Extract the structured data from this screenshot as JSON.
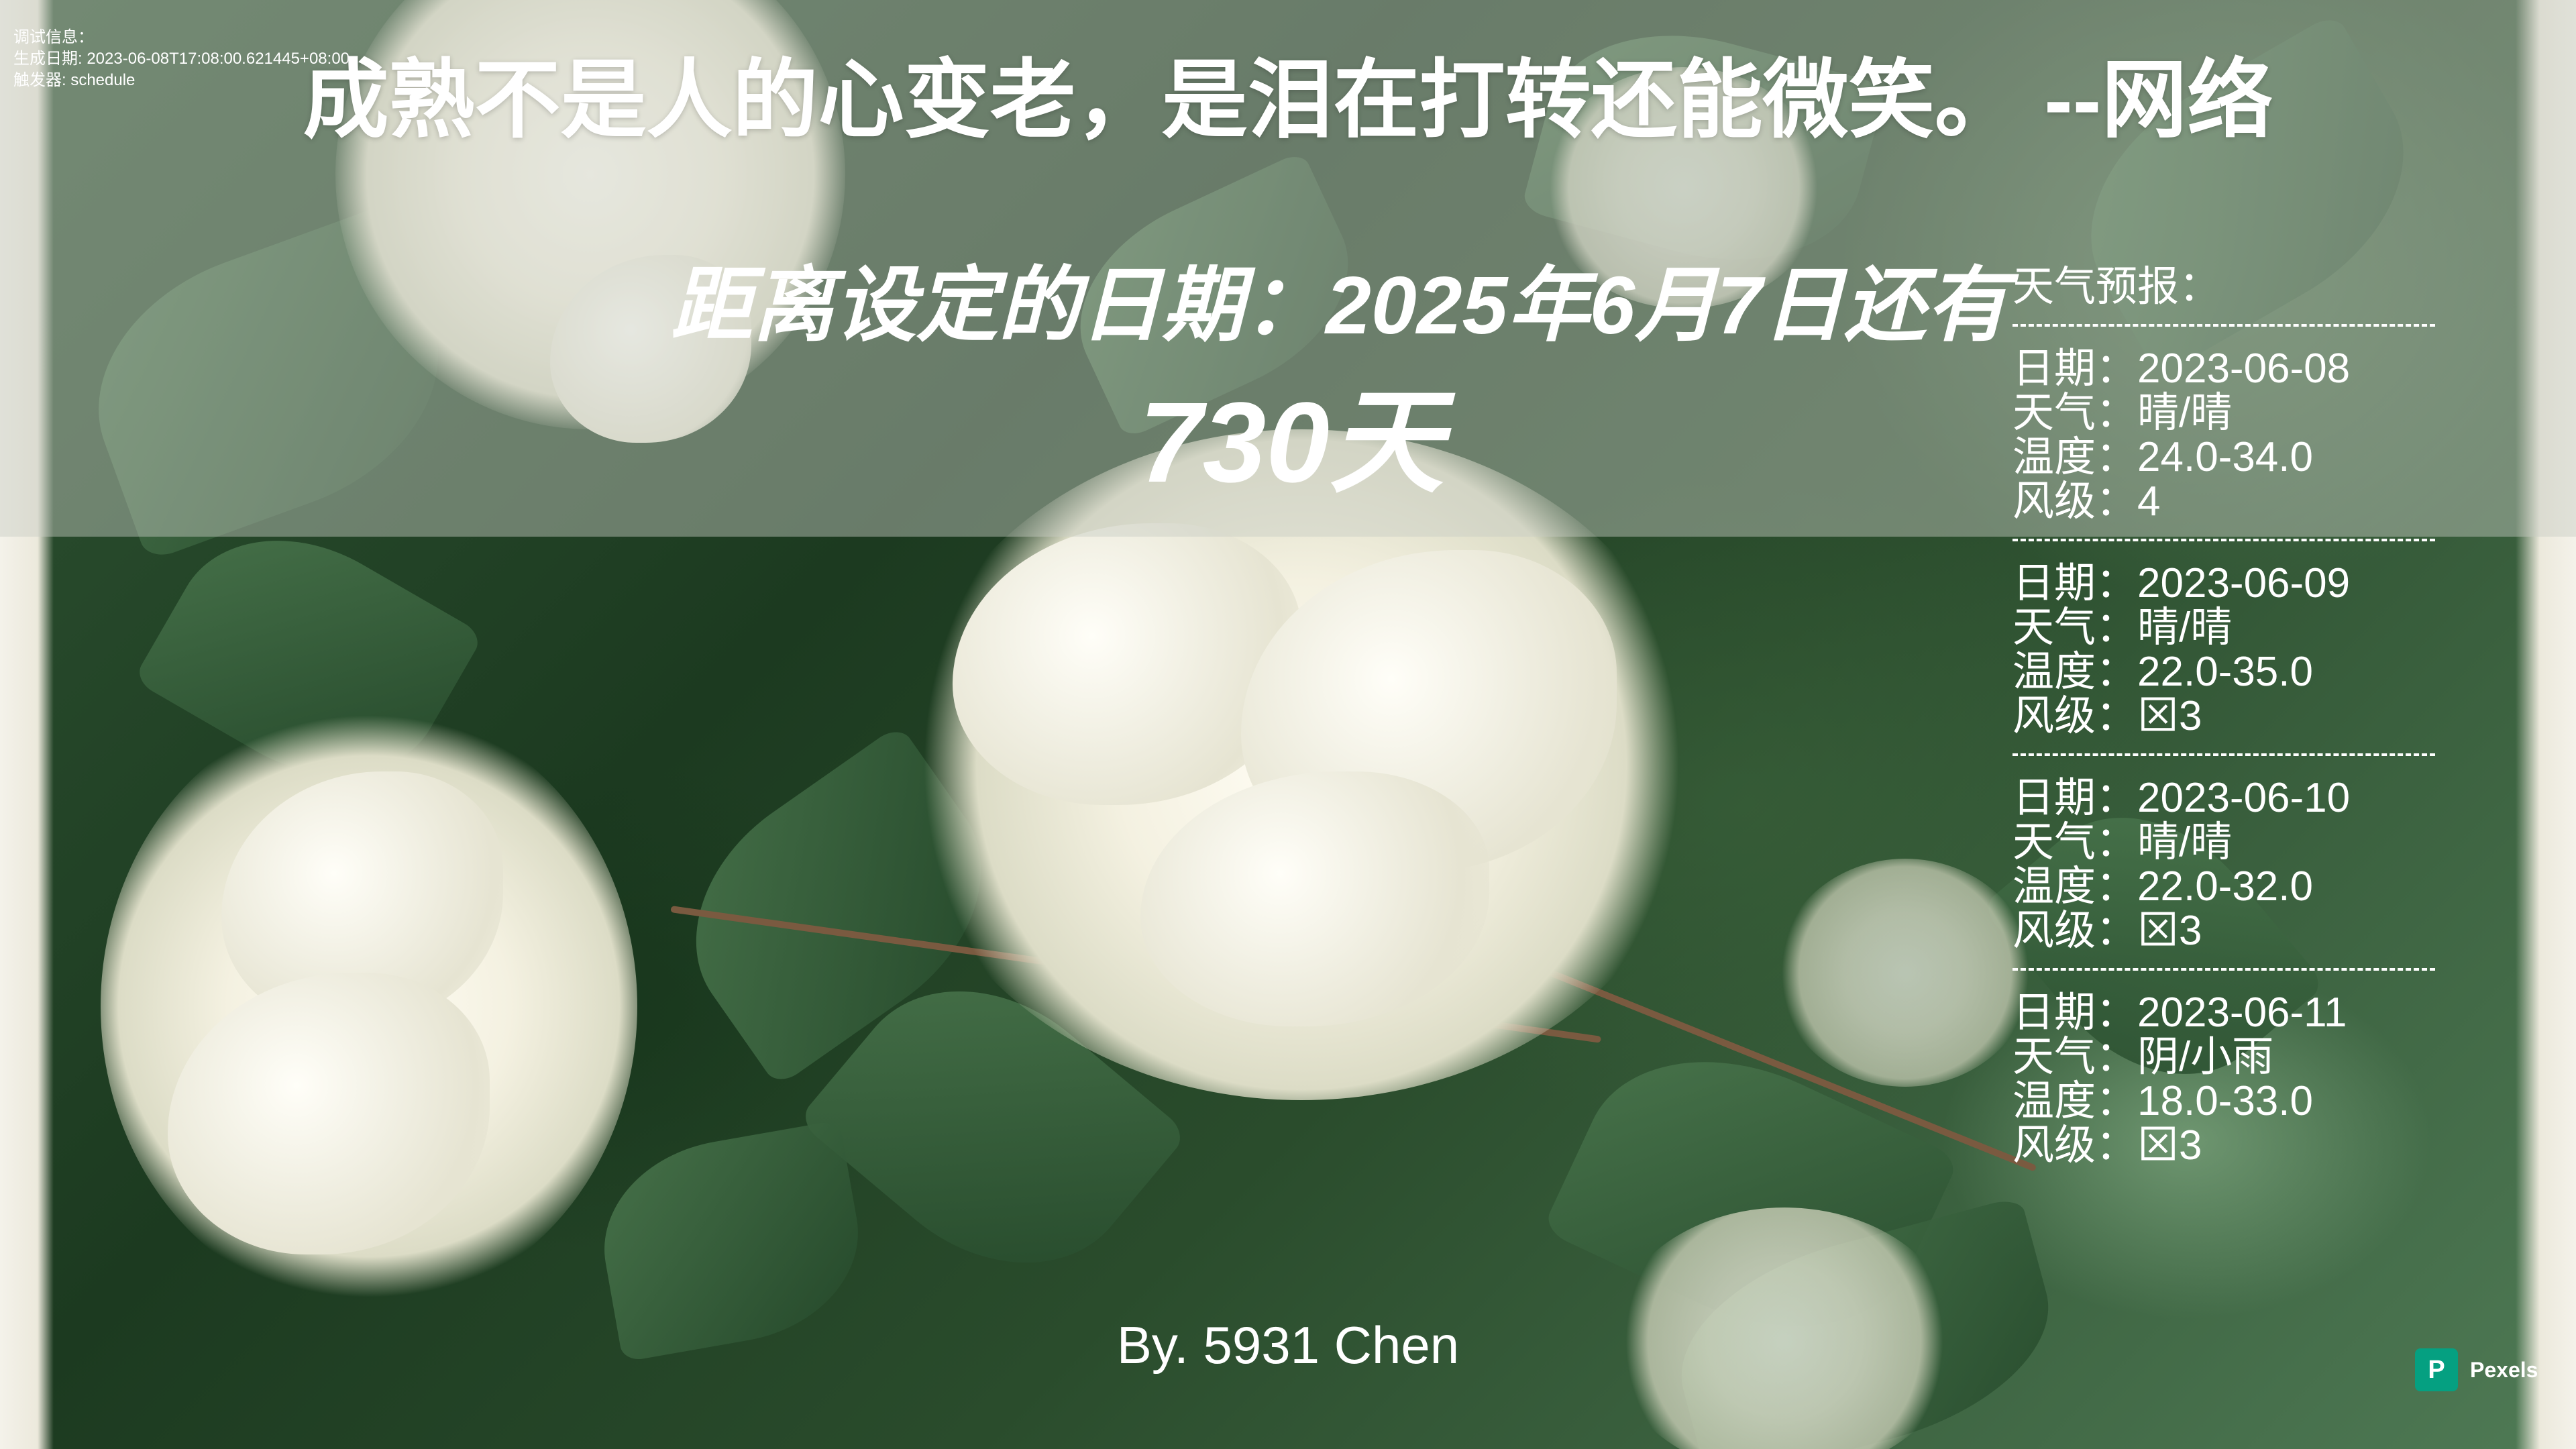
{
  "debug": {
    "title": "调试信息：",
    "generated": "生成日期: 2023-06-08T17:08:00.621445+08:00",
    "trigger": "触发器: schedule"
  },
  "quote": "成熟不是人的心变老，是泪在打转还能微笑。   --网络",
  "countdown": {
    "label": "距离设定的日期：2025年6月7日还有",
    "days": "730天"
  },
  "weather": {
    "title": "天气预报：",
    "divider": "--------------------------------",
    "days": [
      {
        "date": "日期：2023-06-08",
        "weather": "天气：晴/晴",
        "temp": "温度：24.0-34.0",
        "wind": "风级：4"
      },
      {
        "date": "日期：2023-06-09",
        "weather": "天气：晴/晴",
        "temp": "温度：22.0-35.0",
        "wind": "风级：⊠3"
      },
      {
        "date": "日期：2023-06-10",
        "weather": "天气：晴/晴",
        "temp": "温度：22.0-32.0",
        "wind": "风级：⊠3"
      },
      {
        "date": "日期：2023-06-11",
        "weather": "天气：阴/小雨",
        "temp": "温度：18.0-33.0",
        "wind": "风级：⊠3"
      }
    ]
  },
  "credit": "By. 5931 Chen",
  "watermark": {
    "logo_letter": "P",
    "text": "Pexels",
    "brand_color": "#05a081"
  }
}
